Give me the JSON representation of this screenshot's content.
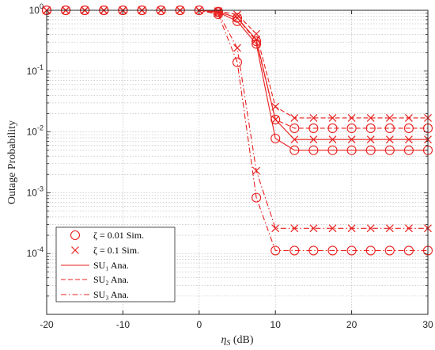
{
  "chart_data": {
    "type": "line",
    "xlabel": "η_S (dB)",
    "xlabel_main": "η",
    "xlabel_sub": "S",
    "xlabel_unit": " (dB)",
    "ylabel": "Outage Probability",
    "xlim": [
      -20,
      30
    ],
    "ylim": [
      1e-05,
      1
    ],
    "yscale": "log",
    "grid": true,
    "xticks": [
      -20,
      -10,
      0,
      10,
      20,
      30
    ],
    "yticks": [
      {
        "value": 1,
        "exp": "0"
      },
      {
        "value": 0.1,
        "exp": "-1"
      },
      {
        "value": 0.01,
        "exp": "-2"
      },
      {
        "value": 0.001,
        "exp": "-3"
      },
      {
        "value": 0.0001,
        "exp": "-4"
      }
    ],
    "legend": {
      "position": "bottom-left",
      "entries": [
        {
          "marker": "circle",
          "line": "none",
          "label": "ζ = 0.01 Sim."
        },
        {
          "marker": "x",
          "line": "none",
          "label": "ζ = 0.1 Sim."
        },
        {
          "marker": "none",
          "line": "solid",
          "label": "SU₁ Ana."
        },
        {
          "marker": "none",
          "line": "dashed",
          "label": "SU₂ Ana."
        },
        {
          "marker": "none",
          "line": "dashdot",
          "label": "SU₃ Ana."
        }
      ]
    },
    "line_color": "#e8201f",
    "x": [
      -20,
      -17.5,
      -15,
      -12.5,
      -10,
      -7.5,
      -5,
      -2.5,
      0,
      2.5,
      5,
      7.5,
      10,
      12.5,
      15,
      17.5,
      20,
      22.5,
      25,
      27.5,
      30
    ],
    "series": [
      {
        "line": "solid",
        "marker": "circle",
        "values": [
          1,
          1,
          1,
          1,
          1,
          1,
          1,
          1,
          1,
          0.93,
          0.66,
          0.28,
          0.0078,
          0.005,
          0.005,
          0.005,
          0.005,
          0.005,
          0.005,
          0.005,
          0.005
        ]
      },
      {
        "line": "solid",
        "marker": "x",
        "values": [
          1,
          1,
          1,
          1,
          1,
          1,
          1,
          1,
          1,
          0.95,
          0.75,
          0.33,
          0.016,
          0.0075,
          0.0075,
          0.0075,
          0.0075,
          0.0075,
          0.0075,
          0.0075,
          0.0075
        ]
      },
      {
        "line": "dashed",
        "marker": "circle",
        "values": [
          1,
          1,
          1,
          1,
          1,
          1,
          1,
          1,
          1,
          0.95,
          0.75,
          0.31,
          0.016,
          0.0115,
          0.0115,
          0.0115,
          0.0115,
          0.0115,
          0.0115,
          0.0115,
          0.0115
        ]
      },
      {
        "line": "dashed",
        "marker": "x",
        "values": [
          1,
          1,
          1,
          1,
          1,
          1,
          1,
          1,
          1,
          0.97,
          0.85,
          0.41,
          0.026,
          0.017,
          0.017,
          0.017,
          0.017,
          0.017,
          0.017,
          0.017,
          0.017
        ]
      },
      {
        "line": "dashdot",
        "marker": "circle",
        "values": [
          1,
          1,
          1,
          1,
          1,
          1,
          1,
          1,
          1,
          0.86,
          0.14,
          0.00083,
          0.000112,
          0.000112,
          0.000112,
          0.000112,
          0.000112,
          0.000112,
          0.000112,
          0.000112,
          0.000112
        ]
      },
      {
        "line": "dashdot",
        "marker": "x",
        "values": [
          1,
          1,
          1,
          1,
          1,
          1,
          1,
          1,
          1,
          0.9,
          0.24,
          0.0023,
          0.00026,
          0.00026,
          0.00026,
          0.00026,
          0.00026,
          0.00026,
          0.00026,
          0.00026,
          0.00026
        ]
      }
    ]
  }
}
